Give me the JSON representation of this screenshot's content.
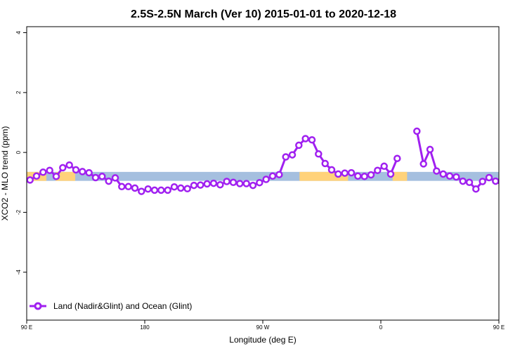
{
  "chart_data": {
    "type": "line",
    "title": "2.5S-2.5N March (Ver 10)   2015-01-01 to 2020-12-18",
    "xlabel": "Longitude (deg E)",
    "ylabel": "XCO2 - MLO trend (ppm)",
    "xlim": [
      90,
      450
    ],
    "ylim": [
      -5.6,
      4.2
    ],
    "x_ticks": [
      {
        "value": 90,
        "label": "90 E"
      },
      {
        "value": 180,
        "label": "180"
      },
      {
        "value": 270,
        "label": "90 W"
      },
      {
        "value": 360,
        "label": "0"
      },
      {
        "value": 450,
        "label": "90 E"
      },
      {
        "value": 540,
        "label": "180"
      }
    ],
    "y_ticks": [
      {
        "value": 4,
        "label": "4"
      },
      {
        "value": 2,
        "label": "2"
      },
      {
        "value": 0,
        "label": "0"
      },
      {
        "value": -2,
        "label": "-2"
      },
      {
        "value": -4,
        "label": "-4"
      }
    ],
    "surface_bar": {
      "y_top": -0.65,
      "y_bottom": -0.95,
      "ocean_color": "#a5bfdf",
      "land_color": "#ffd27a",
      "land_ranges": [
        [
          90,
          105
        ],
        [
          112,
          127
        ],
        [
          298,
          335
        ],
        [
          369,
          380
        ],
        [
          460,
          471
        ],
        [
          486,
          500
        ]
      ]
    },
    "series": [
      {
        "name": "Land (Nadir&Glint) and Ocean (Glint)",
        "color": "#a020f0",
        "segments": [
          {
            "x": [
              92.5,
              97.5,
              102.5,
              107.5,
              112.5,
              117.5,
              122.5,
              127.5,
              132.5,
              137.5,
              142.5,
              147.5,
              152.5,
              157.5,
              162.5,
              167.5,
              172.5,
              177.5,
              182.5,
              187.5,
              192.5,
              197.5,
              202.5,
              207.5,
              212.5,
              217.5,
              222.5,
              227.5,
              232.5,
              237.5,
              242.5,
              247.5,
              252.5,
              257.5,
              262.5,
              267.5,
              272.5,
              277.5,
              282.5,
              287.5,
              292.5,
              297.5,
              302.5,
              307.5,
              312.5,
              317.5,
              322.5,
              327.5,
              332.5,
              337.5,
              342.5,
              347.5,
              352.5,
              357.5,
              362.5,
              367.5,
              372.5
            ],
            "y": [
              -0.92,
              -0.79,
              -0.66,
              -0.6,
              -0.8,
              -0.51,
              -0.42,
              -0.58,
              -0.64,
              -0.68,
              -0.84,
              -0.8,
              -0.96,
              -0.85,
              -1.14,
              -1.14,
              -1.19,
              -1.3,
              -1.22,
              -1.26,
              -1.26,
              -1.26,
              -1.15,
              -1.19,
              -1.21,
              -1.1,
              -1.09,
              -1.05,
              -1.03,
              -1.08,
              -0.97,
              -1.0,
              -1.04,
              -1.04,
              -1.1,
              -1.01,
              -0.9,
              -0.79,
              -0.74,
              -0.15,
              -0.08,
              0.24,
              0.46,
              0.42,
              -0.05,
              -0.37,
              -0.58,
              -0.72,
              -0.69,
              -0.68,
              -0.79,
              -0.8,
              -0.75,
              -0.6,
              -0.46,
              -0.72,
              -0.2
            ]
          },
          {
            "x": [
              387.5,
              392.5,
              397.5,
              402.5,
              407.5,
              412.5,
              417.5,
              422.5,
              427.5,
              432.5,
              437.5,
              442.5,
              447.5,
              452.5,
              457.5,
              462.5,
              467.5,
              472.5,
              477.5,
              482.5,
              487.5,
              492.5,
              497.5,
              502.5,
              507.5,
              512.5,
              517.5,
              522.5,
              527.5,
              532.5,
              537.5
            ],
            "y": [
              0.71,
              -0.38,
              0.1,
              -0.62,
              -0.72,
              -0.79,
              -0.82,
              -0.96,
              -1.0,
              -1.22,
              -0.97,
              -0.84,
              -0.96,
              -1.08,
              -0.91,
              -0.79,
              -0.66,
              -0.61,
              -0.82,
              -0.5,
              -0.42,
              -0.57,
              -0.62,
              -0.67,
              -0.83,
              -0.8,
              -0.93,
              -0.88,
              -1.13,
              -1.17,
              -1.26
            ]
          }
        ]
      }
    ],
    "legend": {
      "position": "bottom-left",
      "label": "Land (Nadir&Glint) and Ocean (Glint)"
    }
  }
}
